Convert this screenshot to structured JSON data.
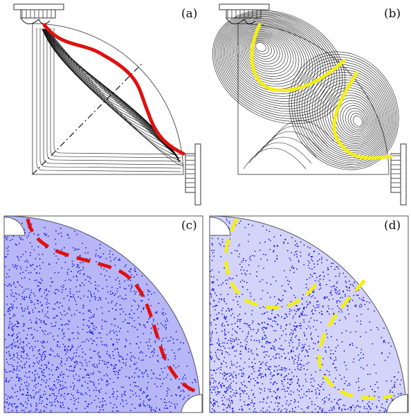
{
  "figure": {
    "panels": [
      {
        "id": "a",
        "label": "(a)",
        "view": "field-lines",
        "curve_color": "#e01010",
        "curve_style": "solid"
      },
      {
        "id": "b",
        "label": "(b)",
        "view": "field-lines",
        "curve_color": "#f2ee1a",
        "curve_style": "solid"
      },
      {
        "id": "c",
        "label": "(c)",
        "view": "particle-scatter",
        "curve_color": "#e01010",
        "curve_style": "dashed"
      },
      {
        "id": "d",
        "label": "(d)",
        "view": "particle-scatter",
        "curve_color": "#f2ee1a",
        "curve_style": "dashed"
      }
    ],
    "colors": {
      "field_lines": "#111111",
      "particles": "#1010e6",
      "background": "#ffffff"
    }
  }
}
